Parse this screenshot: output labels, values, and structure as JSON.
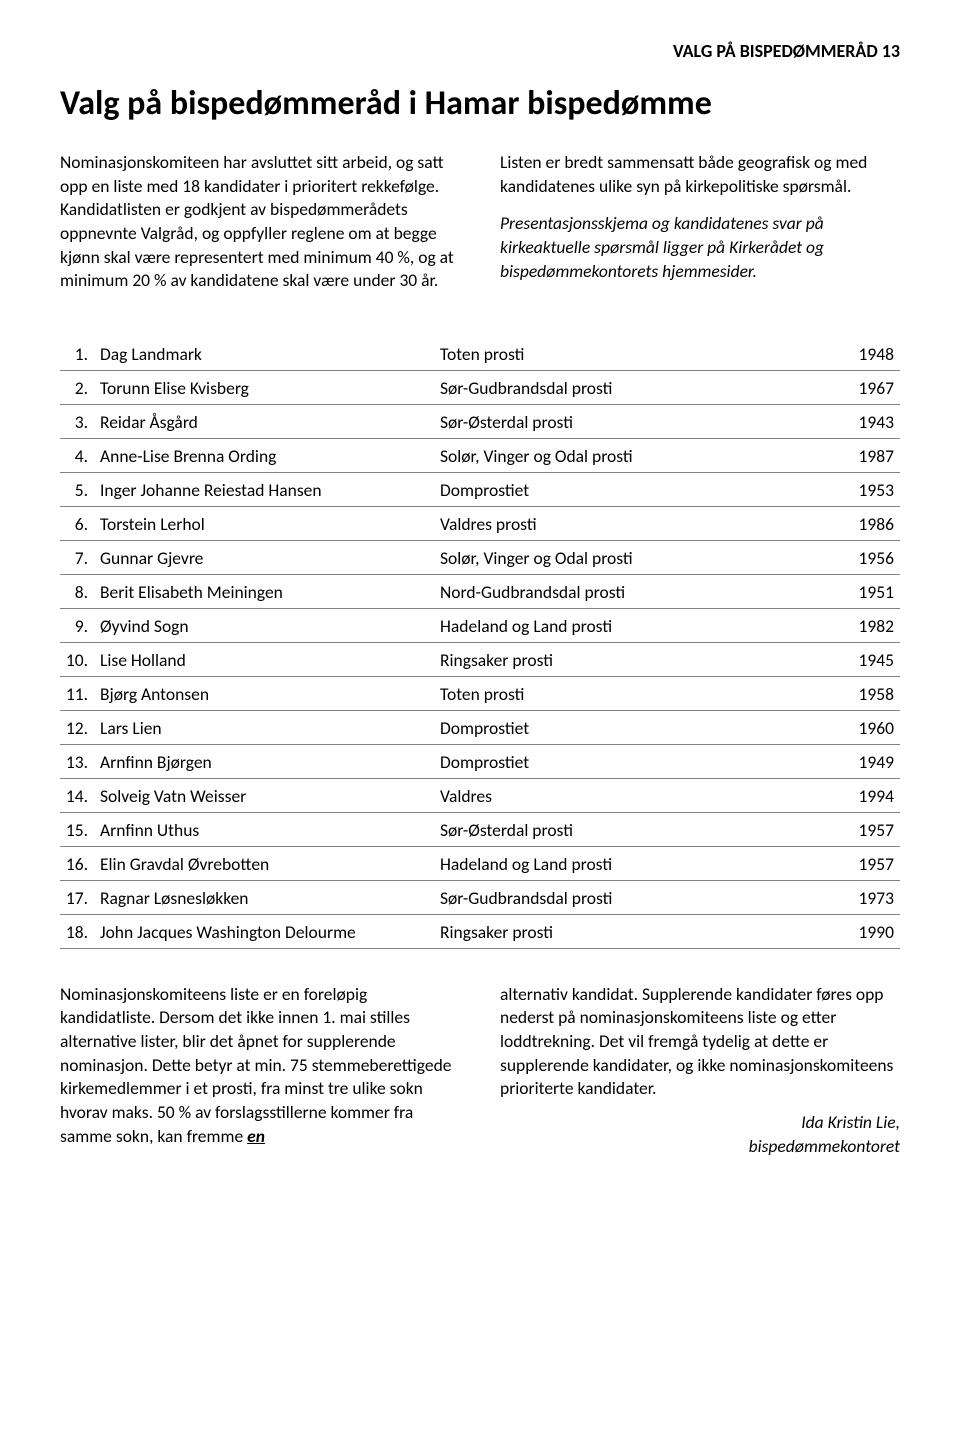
{
  "header": "VALG PÅ BISPEDØMMERÅD 13",
  "title": "Valg på bispedømmeråd i Hamar bispedømme",
  "intro": {
    "left": [
      "Nominasjonskomiteen har avsluttet sitt arbeid, og satt opp en liste med 18 kandidater i prioritert rekkefølge. Kandidatlisten er godkjent av bispedømmerådets oppnevnte Valgråd, og oppfyller reglene om at begge kjønn skal være representert med minimum 40 %, og at minimum 20 % av kandidatene skal være under 30 år."
    ],
    "right_plain": "Listen er bredt sammensatt både geografisk og med kandidatenes ulike syn på kirkepolitiske spørsmål.",
    "right_italic": "Presentasjonsskjema og kandidatenes svar på kirkeaktuelle spørsmål ligger på Kirkerådet og bispedømmekontorets hjemmesider."
  },
  "candidates": [
    {
      "n": "1.",
      "name": "Dag Landmark",
      "prosti": "Toten prosti",
      "year": "1948"
    },
    {
      "n": "2.",
      "name": "Torunn Elise Kvisberg",
      "prosti": "Sør-Gudbrandsdal prosti",
      "year": "1967"
    },
    {
      "n": "3.",
      "name": "Reidar Åsgård",
      "prosti": "Sør-Østerdal prosti",
      "year": "1943"
    },
    {
      "n": "4.",
      "name": "Anne-Lise Brenna Ording",
      "prosti": "Solør, Vinger og Odal prosti",
      "year": "1987"
    },
    {
      "n": "5.",
      "name": "Inger Johanne Reiestad Hansen",
      "prosti": "Domprostiet",
      "year": "1953"
    },
    {
      "n": "6.",
      "name": "Torstein Lerhol",
      "prosti": "Valdres prosti",
      "year": "1986"
    },
    {
      "n": "7.",
      "name": "Gunnar Gjevre",
      "prosti": "Solør, Vinger og Odal prosti",
      "year": "1956"
    },
    {
      "n": "8.",
      "name": "Berit Elisabeth Meiningen",
      "prosti": "Nord-Gudbrandsdal prosti",
      "year": "1951"
    },
    {
      "n": "9.",
      "name": "Øyvind Sogn",
      "prosti": "Hadeland og Land prosti",
      "year": "1982"
    },
    {
      "n": "10.",
      "name": "Lise Holland",
      "prosti": "Ringsaker prosti",
      "year": "1945"
    },
    {
      "n": "11.",
      "name": "Bjørg Antonsen",
      "prosti": "Toten prosti",
      "year": "1958"
    },
    {
      "n": "12.",
      "name": "Lars Lien",
      "prosti": "Domprostiet",
      "year": "1960"
    },
    {
      "n": "13.",
      "name": "Arnfinn Bjørgen",
      "prosti": "Domprostiet",
      "year": "1949"
    },
    {
      "n": "14.",
      "name": "Solveig Vatn Weisser",
      "prosti": "Valdres",
      "year": "1994"
    },
    {
      "n": "15.",
      "name": "Arnfinn Uthus",
      "prosti": "Sør-Østerdal prosti",
      "year": "1957"
    },
    {
      "n": "16.",
      "name": "Elin Gravdal Øvrebotten",
      "prosti": "Hadeland og Land prosti",
      "year": "1957"
    },
    {
      "n": "17.",
      "name": "Ragnar Løsnesløkken",
      "prosti": "Sør-Gudbrandsdal prosti",
      "year": "1973"
    },
    {
      "n": "18.",
      "name": "John Jacques Washington Delourme",
      "prosti": "Ringsaker prosti",
      "year": "1990"
    }
  ],
  "outro": {
    "left_pre": "Nominasjonskomiteens liste er en foreløpig kandidatliste. Dersom det ikke innen 1. mai stilles alternative lister, blir det åpnet for supplerende nominasjon. Dette betyr at min. 75 stemmeberettigede kirkemedlemmer i et prosti, fra minst tre ulike sokn hvorav maks. 50 % av forslagsstillerne kommer fra samme sokn, kan fremme ",
    "left_em": "en",
    "right": "alternativ kandidat. Supplerende kandidater føres opp nederst på nominasjonskomiteens liste og etter loddtrekning. Det vil fremgå tydelig at dette er supplerende kandidater, og ikke nominasjonskomiteens prioriterte kandidater.",
    "sig_name": "Ida Kristin Lie,",
    "sig_org": "bispedømmekontoret"
  },
  "style": {
    "text_color": "#000000",
    "bg_color": "#ffffff",
    "border_color": "#808080",
    "body_fontsize_pt": 13,
    "title_fontsize_pt": 26,
    "header_fontsize_pt": 14
  }
}
